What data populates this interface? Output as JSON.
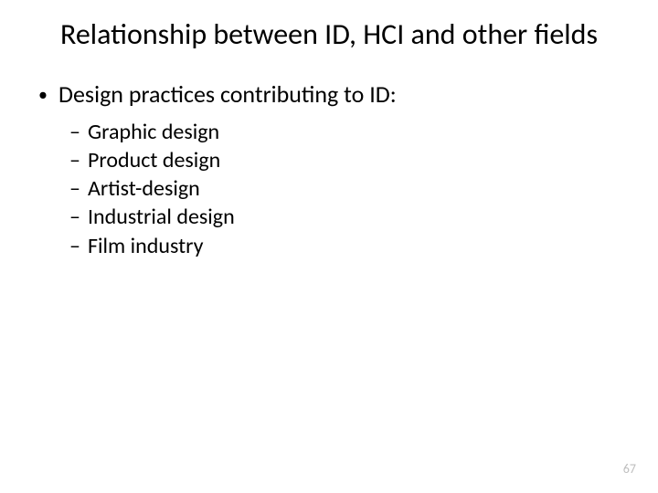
{
  "slide": {
    "title": "Relationship between ID, HCI and other fields",
    "title_fontsize": 32,
    "title_color": "#000000",
    "background_color": "#ffffff",
    "body_fontsize_level1": 26,
    "body_fontsize_level2": 24,
    "text_color": "#000000",
    "bullets": {
      "level1_marker": "•",
      "level2_marker": "–",
      "item": "Design practices contributing to ID:",
      "subitems": [
        "Graphic design",
        "Product design",
        "Artist-design",
        "Industrial design",
        "Film industry"
      ]
    },
    "page_number": "67",
    "page_number_color": "#bfbfbf",
    "page_number_fontsize": 14
  }
}
